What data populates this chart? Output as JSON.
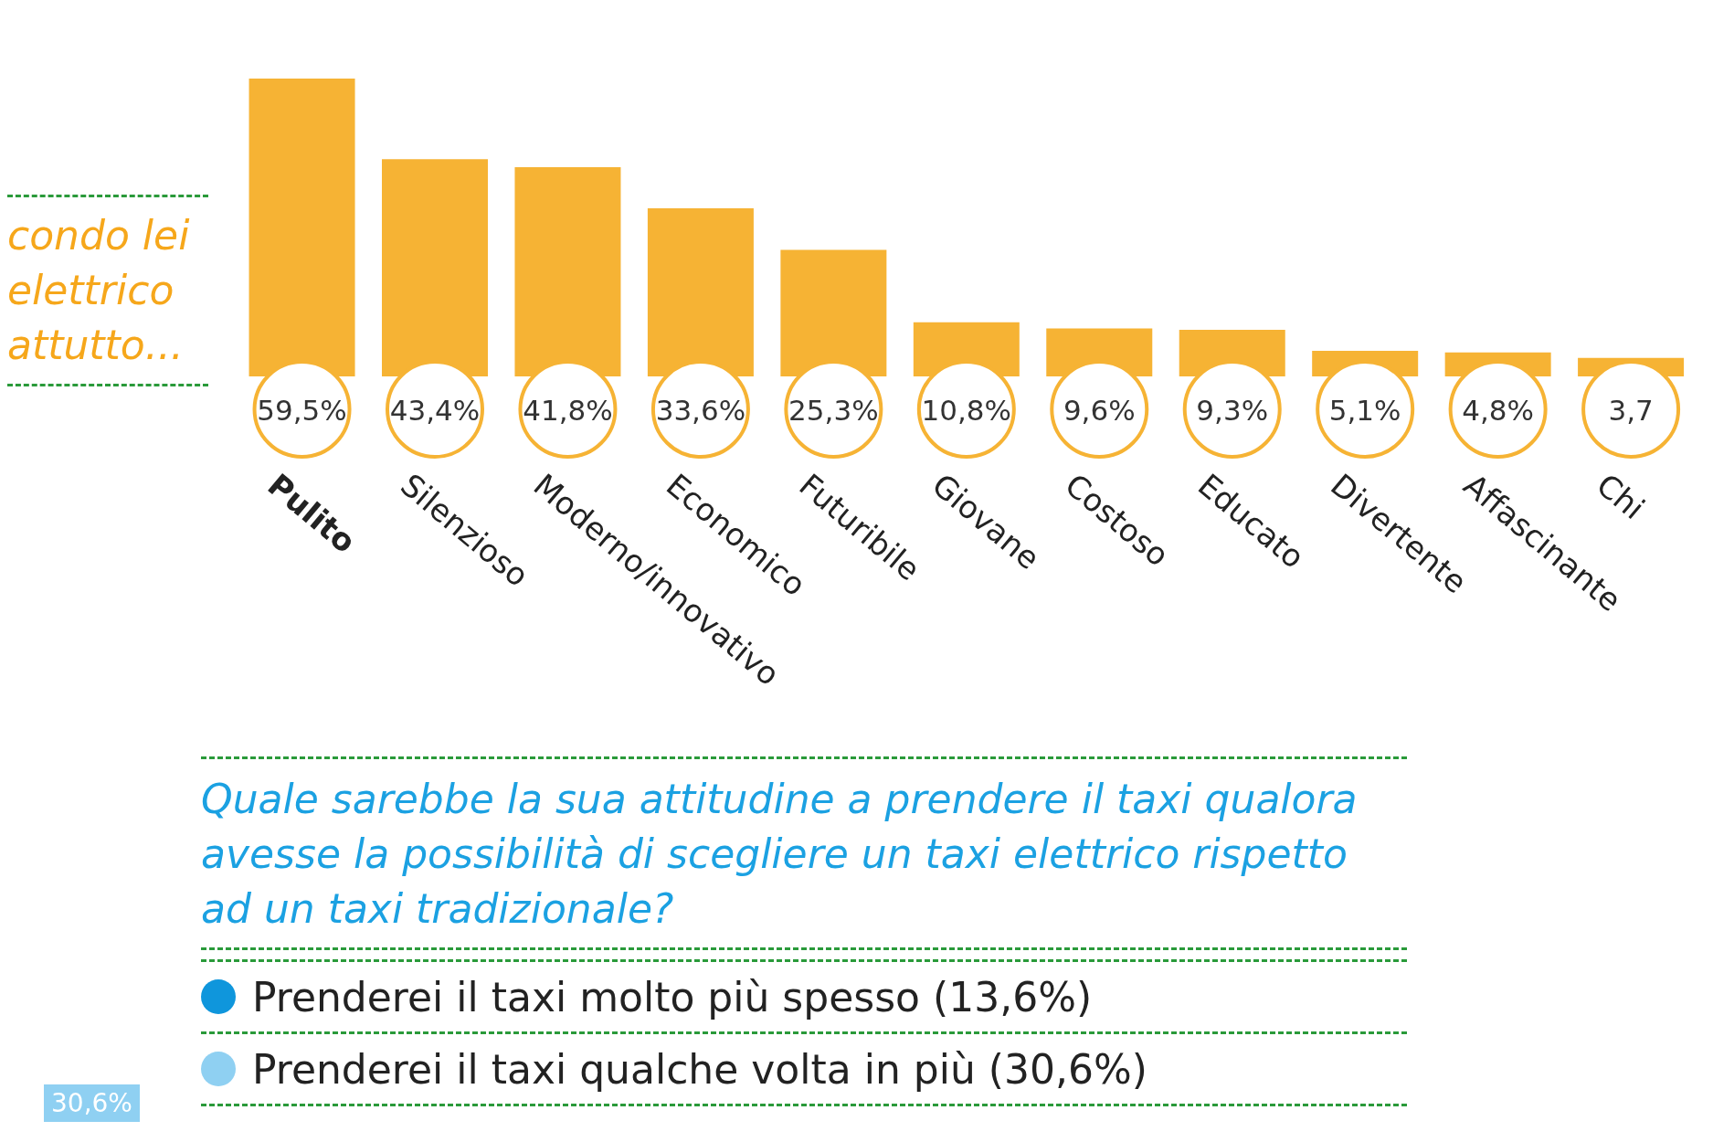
{
  "chart_data": [
    {
      "type": "bar",
      "title": "condo lei elettrico attutto...",
      "categories": [
        "Pulito",
        "Silenzioso",
        "Moderno/innovativo",
        "Economico",
        "Futuribile",
        "Giovane",
        "Costoso",
        "Educato",
        "Divertente",
        "Affascinante",
        "Chi"
      ],
      "values": [
        59.5,
        43.4,
        41.8,
        33.6,
        25.3,
        10.8,
        9.6,
        9.3,
        5.1,
        4.8,
        3.7
      ],
      "value_labels": [
        "59,5%",
        "43,4%",
        "41,8%",
        "33,6%",
        "25,3%",
        "10,8%",
        "9,6%",
        "9,3%",
        "5,1%",
        "4,8%",
        "3,7"
      ],
      "color": "#f6b334"
    },
    {
      "type": "other",
      "title": "Quale sarebbe la sua attitudine a prendere il taxi qualora avesse la possibilità di scegliere un taxi elettrico rispetto ad un taxi tradizionale?",
      "categories": [
        "Prenderei il taxi molto più spesso (13,6%)",
        "Prenderei il taxi qualche volta in più (30,6%)"
      ],
      "colors": [
        "#0f96dc",
        "#8fd0f2"
      ],
      "annotations": [
        "30,6%"
      ]
    }
  ]
}
